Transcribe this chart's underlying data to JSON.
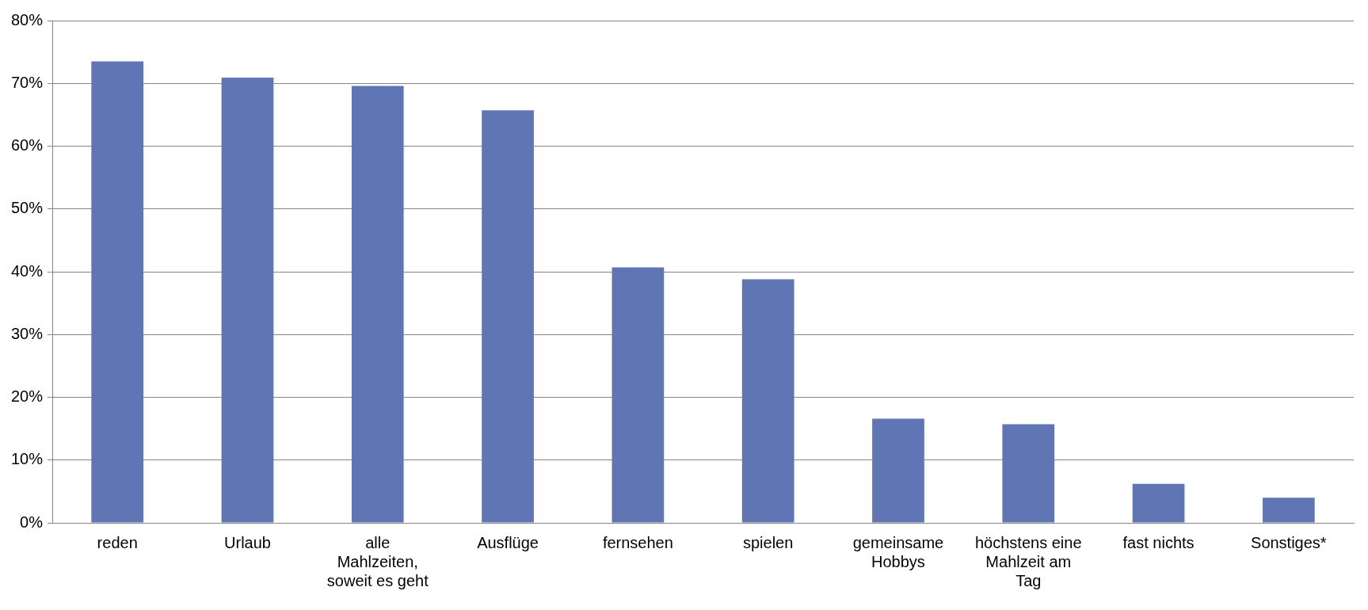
{
  "chart_data": {
    "type": "bar",
    "categories": [
      "reden",
      "Urlaub",
      "alle Mahlzeiten, soweit es geht",
      "Ausflüge",
      "fernsehen",
      "spielen",
      "gemeinsame Hobbys",
      "höchstens eine Mahlzeit am Tag",
      "fast nichts",
      "Sonstiges*"
    ],
    "values": [
      73.5,
      70.9,
      69.6,
      65.7,
      40.7,
      38.8,
      16.6,
      15.7,
      6.2,
      4.0
    ],
    "color": "#6076b4",
    "ylim": [
      0,
      80
    ],
    "yticks": [
      {
        "value": 0,
        "label": "0%"
      },
      {
        "value": 10,
        "label": "10%"
      },
      {
        "value": 20,
        "label": "20%"
      },
      {
        "value": 30,
        "label": "30%"
      },
      {
        "value": 40,
        "label": "40%"
      },
      {
        "value": 50,
        "label": "50%"
      },
      {
        "value": 60,
        "label": "60%"
      },
      {
        "value": 70,
        "label": "70%"
      },
      {
        "value": 80,
        "label": "80%"
      }
    ],
    "grid": "y"
  }
}
